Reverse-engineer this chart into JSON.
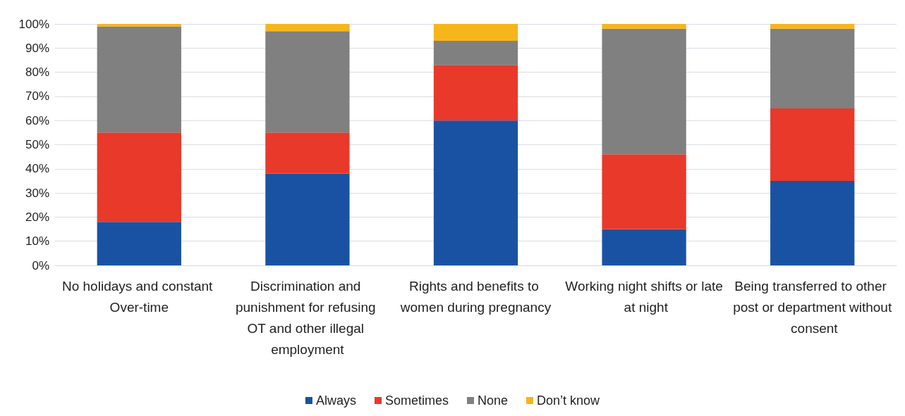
{
  "chart_data": {
    "type": "bar",
    "stacked": true,
    "categories": [
      "No holidays and constant Over-time",
      "Discrimination and punishment for refusing OT and other illegal employment",
      "Rights and benefits to women during pregnancy",
      "Working night shifts or late at night",
      "Being transferred to other post or department without consent"
    ],
    "series": [
      {
        "name": "Always",
        "color": "#1a52a3",
        "values": [
          18,
          38,
          60,
          15,
          35
        ]
      },
      {
        "name": "Sometimes",
        "color": "#e8392a",
        "values": [
          37,
          17,
          23,
          31,
          30
        ]
      },
      {
        "name": "None",
        "color": "#808080",
        "values": [
          44,
          42,
          10,
          52,
          33
        ]
      },
      {
        "name": "Don’t know",
        "color": "#f7b51c",
        "values": [
          1,
          3,
          7,
          2,
          2
        ]
      }
    ],
    "ylim": [
      0,
      100
    ],
    "yticks": [
      {
        "value": 0,
        "label": "0%"
      },
      {
        "value": 10,
        "label": "10%"
      },
      {
        "value": 20,
        "label": "20%"
      },
      {
        "value": 30,
        "label": "30%"
      },
      {
        "value": 40,
        "label": "40%"
      },
      {
        "value": 50,
        "label": "50%"
      },
      {
        "value": 60,
        "label": "60%"
      },
      {
        "value": 70,
        "label": "70%"
      },
      {
        "value": 80,
        "label": "80%"
      },
      {
        "value": 90,
        "label": "90%"
      },
      {
        "value": 100,
        "label": "100%"
      }
    ],
    "grid": "y",
    "legend": "bottom"
  }
}
